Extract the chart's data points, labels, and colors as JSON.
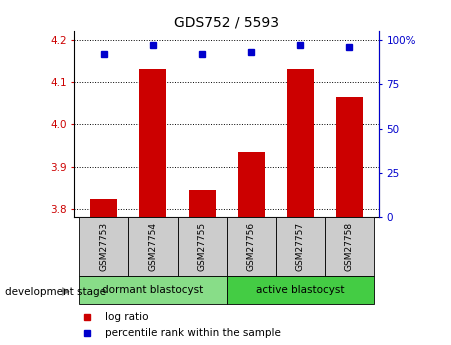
{
  "title": "GDS752 / 5593",
  "samples": [
    "GSM27753",
    "GSM27754",
    "GSM27755",
    "GSM27756",
    "GSM27757",
    "GSM27758"
  ],
  "log_ratio": [
    3.824,
    4.13,
    3.845,
    3.935,
    4.13,
    4.065
  ],
  "percentile_rank": [
    92,
    97,
    92,
    93,
    97,
    96
  ],
  "bar_color": "#cc0000",
  "dot_color": "#0000cc",
  "ylim_left": [
    3.78,
    4.22
  ],
  "ylim_right": [
    0,
    105
  ],
  "yticks_left": [
    3.8,
    3.9,
    4.0,
    4.1,
    4.2
  ],
  "yticks_right": [
    0,
    25,
    50,
    75,
    100
  ],
  "ytick_labels_right": [
    "0",
    "25",
    "50",
    "75",
    "100%"
  ],
  "groups": [
    {
      "label": "dormant blastocyst",
      "samples": [
        0,
        1,
        2
      ],
      "color": "#88dd88"
    },
    {
      "label": "active blastocyst",
      "samples": [
        3,
        4,
        5
      ],
      "color": "#44cc44"
    }
  ],
  "group_label_text": "development stage",
  "legend_log_ratio": "log ratio",
  "legend_percentile": "percentile rank within the sample",
  "bar_base": 3.78,
  "x_positions": [
    0,
    1,
    2,
    3,
    4,
    5
  ],
  "bar_width": 0.55,
  "sample_box_color": "#cccccc",
  "background_color": "#ffffff"
}
